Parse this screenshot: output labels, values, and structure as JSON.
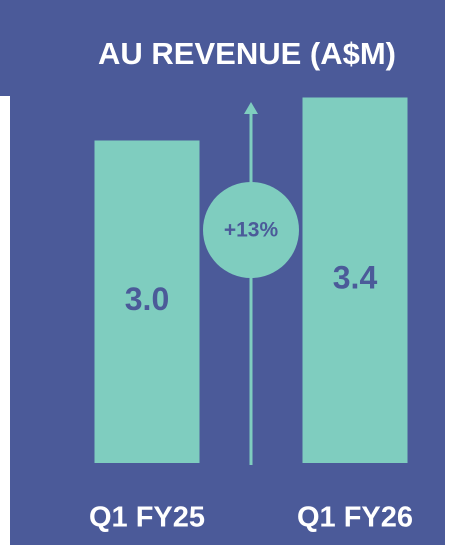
{
  "chart_data": {
    "type": "bar",
    "title": "AU REVENUE (A$M)",
    "categories": [
      "Q1 FY25",
      "Q1 FY26"
    ],
    "values": [
      3.0,
      3.4
    ],
    "value_labels": [
      "3.0",
      "3.4"
    ],
    "color": "#7fcdbf",
    "annotation": "+13%"
  }
}
